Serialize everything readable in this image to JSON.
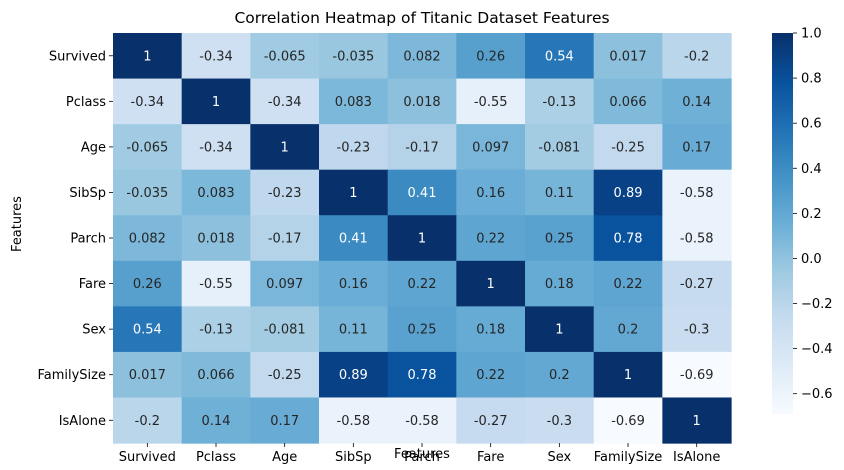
{
  "chart_data": {
    "type": "heatmap",
    "title": "Correlation Heatmap of Titanic Dataset Features",
    "xlabel": "Features",
    "ylabel": "Features",
    "rows": [
      "Survived",
      "Pclass",
      "Age",
      "SibSp",
      "Parch",
      "Fare",
      "Sex",
      "FamilySize",
      "IsAlone"
    ],
    "columns": [
      "Survived",
      "Pclass",
      "Age",
      "SibSp",
      "Parch",
      "Fare",
      "Sex",
      "FamilySize",
      "IsAlone"
    ],
    "values": [
      [
        1,
        -0.34,
        -0.065,
        -0.035,
        0.082,
        0.26,
        0.54,
        0.017,
        -0.2
      ],
      [
        -0.34,
        1,
        -0.34,
        0.083,
        0.018,
        -0.55,
        -0.13,
        0.066,
        0.14
      ],
      [
        -0.065,
        -0.34,
        1,
        -0.23,
        -0.17,
        0.097,
        -0.081,
        -0.25,
        0.17
      ],
      [
        -0.035,
        0.083,
        -0.23,
        1,
        0.41,
        0.16,
        0.11,
        0.89,
        -0.58
      ],
      [
        0.082,
        0.018,
        -0.17,
        0.41,
        1,
        0.22,
        0.25,
        0.78,
        -0.58
      ],
      [
        0.26,
        -0.55,
        0.097,
        0.16,
        0.22,
        1,
        0.18,
        0.22,
        -0.27
      ],
      [
        0.54,
        -0.13,
        -0.081,
        0.11,
        0.25,
        0.18,
        1,
        0.2,
        -0.3
      ],
      [
        0.017,
        0.066,
        -0.25,
        0.89,
        0.78,
        0.22,
        0.2,
        1,
        -0.69
      ],
      [
        -0.2,
        0.14,
        0.17,
        -0.58,
        -0.58,
        -0.27,
        -0.3,
        -0.69,
        1
      ]
    ],
    "color_range": [
      -0.69,
      1
    ],
    "colormap": "Blues",
    "colorbar_ticks": [
      1.0,
      0.8,
      0.6,
      0.4,
      0.2,
      0.0,
      -0.2,
      -0.4,
      -0.6
    ],
    "colorbar_tick_labels": [
      "1.0",
      "0.8",
      "0.6",
      "0.4",
      "0.2",
      "0.0",
      "−0.2",
      "−0.4",
      "−0.6"
    ],
    "annotations": true
  }
}
